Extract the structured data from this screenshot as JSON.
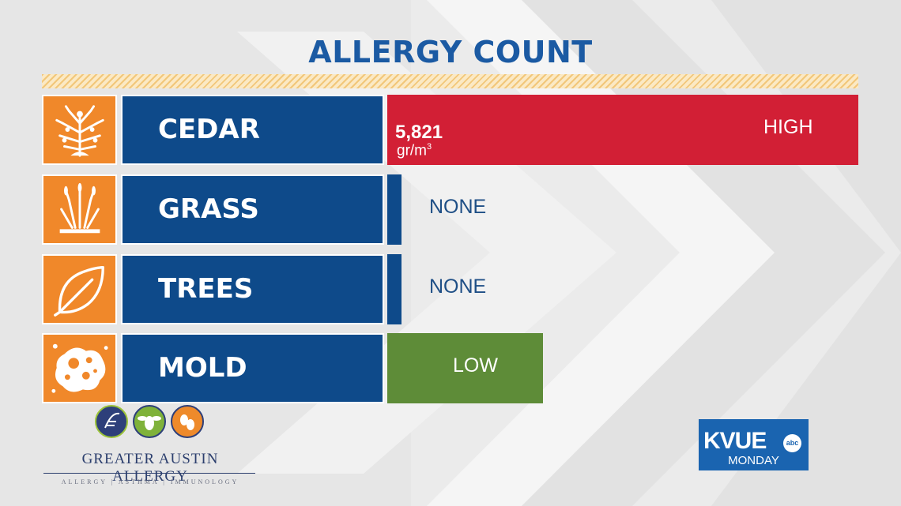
{
  "title": "ALLERGY COUNT",
  "colors": {
    "title": "#1b5aa3",
    "icon_bg": "#f0882a",
    "name_bg": "#0e4a8a",
    "high": "#d21f35",
    "none": "#0e4a8a",
    "low": "#5e8c38"
  },
  "chart_data": {
    "type": "bar",
    "orientation": "horizontal",
    "title": "ALLERGY COUNT",
    "categories": [
      "CEDAR",
      "GRASS",
      "TREES",
      "MOLD"
    ],
    "levels": [
      "HIGH",
      "NONE",
      "NONE",
      "LOW"
    ],
    "level_scale": [
      "NONE",
      "LOW",
      "HIGH"
    ],
    "bar_fraction": [
      1.0,
      0.03,
      0.03,
      0.33
    ],
    "counts": [
      {
        "category": "CEDAR",
        "value": "5,821",
        "unit": "gr/m",
        "unit_exponent": "3"
      }
    ]
  },
  "rows": [
    {
      "name": "CEDAR",
      "icon": "cedar-icon",
      "level": "HIGH",
      "fraction": 1.0,
      "color": "#d21f35",
      "level_color": "#ffffff",
      "level_left": 476,
      "count": "5,821",
      "unit": "gr/m",
      "unit_exp": "3"
    },
    {
      "name": "GRASS",
      "icon": "grass-icon",
      "level": "NONE",
      "fraction": 0.03,
      "color": "#0e4a8a",
      "level_color": "#1f4f86",
      "level_left": 53
    },
    {
      "name": "TREES",
      "icon": "leaf-icon",
      "level": "NONE",
      "fraction": 0.03,
      "color": "#0e4a8a",
      "level_color": "#1f4f86",
      "level_left": 53
    },
    {
      "name": "MOLD",
      "icon": "mold-icon",
      "level": "LOW",
      "fraction": 0.33,
      "color": "#5e8c38",
      "level_color": "#ffffff",
      "level_left": 83
    }
  ],
  "logo": {
    "name": "GREATER AUSTIN ALLERGY",
    "tagline": "ALLERGY | ASTHMA | IMMUNOLOGY"
  },
  "station": {
    "name": "KVUE",
    "network": "abc",
    "day": "MONDAY"
  }
}
